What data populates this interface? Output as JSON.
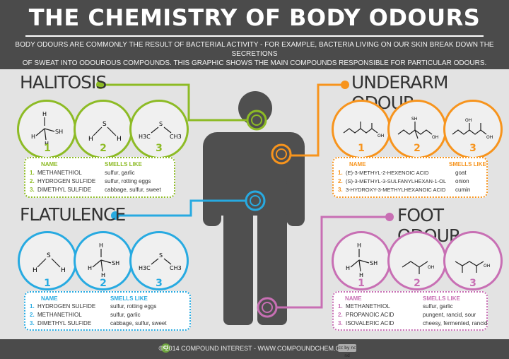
{
  "title": "THE CHEMISTRY OF BODY ODOURS",
  "subtitle_line1": "BODY ODOURS ARE COMMONLY THE RESULT OF BACTERIAL ACTIVITY - FOR EXAMPLE, BACTERIA LIVING ON OUR SKIN BREAK DOWN THE SECRETIONS",
  "subtitle_line2": "OF SWEAT INTO ODOUROUS COMPOUNDS. THIS GRAPHIC SHOWS THE MAIN COMPOUNDS RESPONSIBLE FOR PARTICULAR ODOURS.",
  "footer": "© 2014 COMPOUND INTEREST - WWW.COMPOUNDCHEM.COM",
  "ci_logo": "Ci",
  "cc_badge": "cc by nc nd",
  "labels": {
    "name": "NAME",
    "smells": "SMELLS LIKE"
  },
  "numbers": [
    "1",
    "2",
    "3"
  ],
  "atoms": {
    "H": "H",
    "S": "S",
    "C": "C",
    "SH": "SH",
    "OH": "OH",
    "H3C": "H3C",
    "CH3": "CH3"
  },
  "colors": {
    "halitosis": "#8dbb25",
    "underarm": "#f7941d",
    "flatulence": "#27aae1",
    "foot": "#c86fb4",
    "body": "#4f4f4f"
  },
  "halitosis": {
    "title": "HALITOSIS",
    "rows": [
      {
        "num": "1.",
        "name": "METHANETHIOL",
        "smell": "sulfur, garlic"
      },
      {
        "num": "2.",
        "name": "HYDROGEN SULFIDE",
        "smell": "sulfur, rotting eggs"
      },
      {
        "num": "3.",
        "name": "DIMETHYL SULFIDE",
        "smell": "cabbage, sulfur, sweet"
      }
    ]
  },
  "underarm": {
    "title": "UNDERARM ODOUR",
    "rows": [
      {
        "num": "1.",
        "name": "(E)-3-METHYL-2-HEXENOIC ACID",
        "smell": "goat"
      },
      {
        "num": "2.",
        "name": "(S)-3-METHYL-3-SULFANYLHEXAN-1-OL",
        "smell": "onion"
      },
      {
        "num": "3.",
        "name": "3-HYDROXY-3-METHYLHEXANOIC ACID",
        "smell": "cumin"
      }
    ]
  },
  "flatulence": {
    "title": "FLATULENCE",
    "rows": [
      {
        "num": "1.",
        "name": "HYDROGEN SULFIDE",
        "smell": "sulfur, rotting eggs"
      },
      {
        "num": "2.",
        "name": "METHANETHIOL",
        "smell": "sulfur, garlic"
      },
      {
        "num": "3.",
        "name": "DIMETHYL SULFIDE",
        "smell": "cabbage, sulfur, sweet"
      }
    ]
  },
  "foot": {
    "title": "FOOT ODOUR",
    "rows": [
      {
        "num": "1.",
        "name": "METHANETHIOL",
        "smell": "sulfur, garlic"
      },
      {
        "num": "2.",
        "name": "PROPANOIC ACID",
        "smell": "pungent, rancid, sour"
      },
      {
        "num": "3.",
        "name": "ISOVALERIC ACID",
        "smell": "cheesy, fermented, rancid"
      }
    ]
  }
}
